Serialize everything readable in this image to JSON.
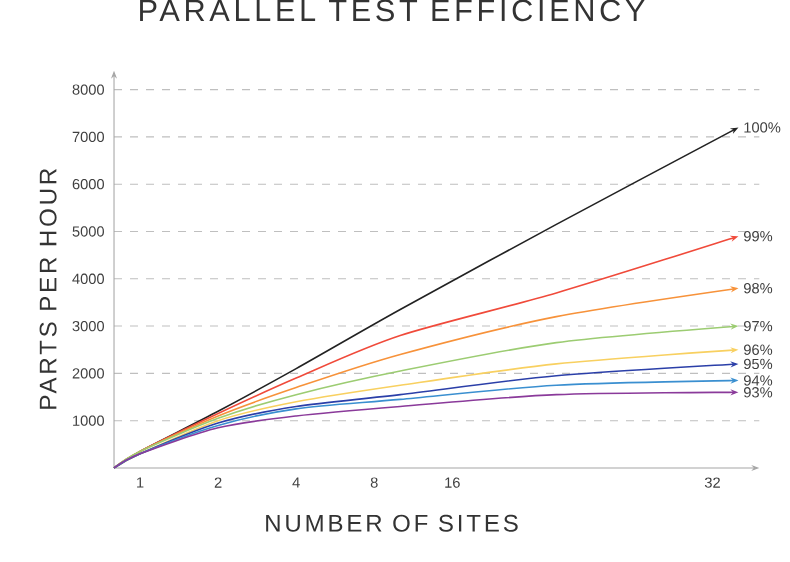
{
  "chart_data": {
    "type": "line",
    "title": "PARALLEL TEST EFFICIENCY",
    "xlabel": "NUMBER OF SITES",
    "ylabel": "PARTS PER HOUR",
    "categories": [
      null,
      "1",
      null,
      null,
      "2",
      null,
      null,
      "4",
      null,
      null,
      "8",
      null,
      null,
      "16",
      null,
      null,
      null,
      null,
      null,
      null,
      null,
      null,
      null,
      "32",
      null
    ],
    "ylim": [
      0,
      8400
    ],
    "yticks": [
      1000,
      2000,
      3000,
      4000,
      5000,
      6000,
      7000,
      8000
    ],
    "grid": "y",
    "line_style": "solid",
    "series": [
      {
        "name": "100%",
        "color": "#222222",
        "values": [
          0,
          350,
          null,
          null,
          1200,
          null,
          null,
          2100,
          null,
          null,
          null,
          3350,
          null,
          null,
          null,
          null,
          null,
          5150,
          null,
          null,
          null,
          null,
          null,
          null,
          7200
        ]
      },
      {
        "name": "99%",
        "color": "#f04a3a",
        "values": [
          0,
          350,
          null,
          null,
          1150,
          null,
          null,
          1900,
          null,
          null,
          null,
          2800,
          null,
          null,
          null,
          null,
          null,
          3700,
          null,
          null,
          null,
          null,
          null,
          null,
          4900
        ]
      },
      {
        "name": "98%",
        "color": "#f7923a",
        "values": [
          0,
          350,
          null,
          null,
          1100,
          null,
          null,
          1700,
          null,
          null,
          null,
          2400,
          null,
          null,
          null,
          null,
          null,
          3200,
          null,
          null,
          null,
          null,
          null,
          null,
          3800
        ]
      },
      {
        "name": "97%",
        "color": "#9ccc72",
        "values": [
          0,
          350,
          null,
          null,
          1050,
          null,
          null,
          1550,
          null,
          null,
          null,
          2050,
          null,
          null,
          null,
          null,
          null,
          2650,
          null,
          null,
          null,
          null,
          null,
          null,
          3000
        ]
      },
      {
        "name": "96%",
        "color": "#f8d060",
        "values": [
          0,
          300,
          null,
          null,
          1000,
          null,
          null,
          1400,
          null,
          null,
          null,
          1750,
          null,
          null,
          null,
          null,
          null,
          2200,
          null,
          null,
          null,
          null,
          null,
          null,
          2500
        ]
      },
      {
        "name": "95%",
        "color": "#2b3fa8",
        "values": [
          0,
          300,
          null,
          null,
          950,
          null,
          null,
          1300,
          null,
          null,
          null,
          1550,
          null,
          null,
          null,
          null,
          null,
          1950,
          null,
          null,
          null,
          null,
          null,
          null,
          2200
        ]
      },
      {
        "name": "94%",
        "color": "#3a8fd0",
        "values": [
          0,
          300,
          null,
          null,
          900,
          null,
          null,
          1250,
          null,
          null,
          null,
          1450,
          null,
          null,
          null,
          null,
          null,
          1750,
          null,
          null,
          null,
          null,
          null,
          null,
          1850
        ]
      },
      {
        "name": "93%",
        "color": "#8a3a9a",
        "values": [
          0,
          300,
          null,
          null,
          850,
          null,
          null,
          1100,
          null,
          null,
          null,
          1300,
          null,
          null,
          null,
          null,
          null,
          1550,
          null,
          null,
          null,
          null,
          null,
          null,
          1600
        ]
      }
    ]
  }
}
